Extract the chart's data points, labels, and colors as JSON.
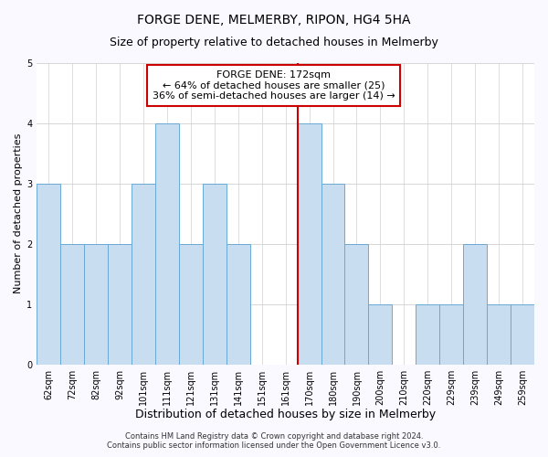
{
  "title": "FORGE DENE, MELMERBY, RIPON, HG4 5HA",
  "subtitle": "Size of property relative to detached houses in Melmerby",
  "xlabel": "Distribution of detached houses by size in Melmerby",
  "ylabel": "Number of detached properties",
  "bar_labels": [
    "62sqm",
    "72sqm",
    "82sqm",
    "92sqm",
    "101sqm",
    "111sqm",
    "121sqm",
    "131sqm",
    "141sqm",
    "151sqm",
    "161sqm",
    "170sqm",
    "180sqm",
    "190sqm",
    "200sqm",
    "210sqm",
    "220sqm",
    "229sqm",
    "239sqm",
    "249sqm",
    "259sqm"
  ],
  "bar_values": [
    3,
    2,
    2,
    2,
    3,
    4,
    2,
    3,
    2,
    0,
    0,
    4,
    3,
    2,
    1,
    0,
    1,
    1,
    2,
    1,
    1
  ],
  "bar_color": "#c9ddf0",
  "bar_edge_color": "#6aaad4",
  "vline_color": "#cc0000",
  "annotation_title": "FORGE DENE: 172sqm",
  "annotation_line1": "← 64% of detached houses are smaller (25)",
  "annotation_line2": "36% of semi-detached houses are larger (14) →",
  "annotation_box_edgecolor": "#cc0000",
  "annotation_bg": "#ffffff",
  "ylim": [
    0,
    5
  ],
  "yticks": [
    0,
    1,
    2,
    3,
    4,
    5
  ],
  "footer_line1": "Contains HM Land Registry data © Crown copyright and database right 2024.",
  "footer_line2": "Contains public sector information licensed under the Open Government Licence v3.0.",
  "bg_color": "#f9f9ff",
  "plot_bg_color": "#ffffff",
  "grid_color": "#d0d0d0",
  "title_fontsize": 10,
  "subtitle_fontsize": 9,
  "xlabel_fontsize": 9,
  "ylabel_fontsize": 8,
  "tick_fontsize": 7,
  "footer_fontsize": 6,
  "annotation_fontsize": 8
}
